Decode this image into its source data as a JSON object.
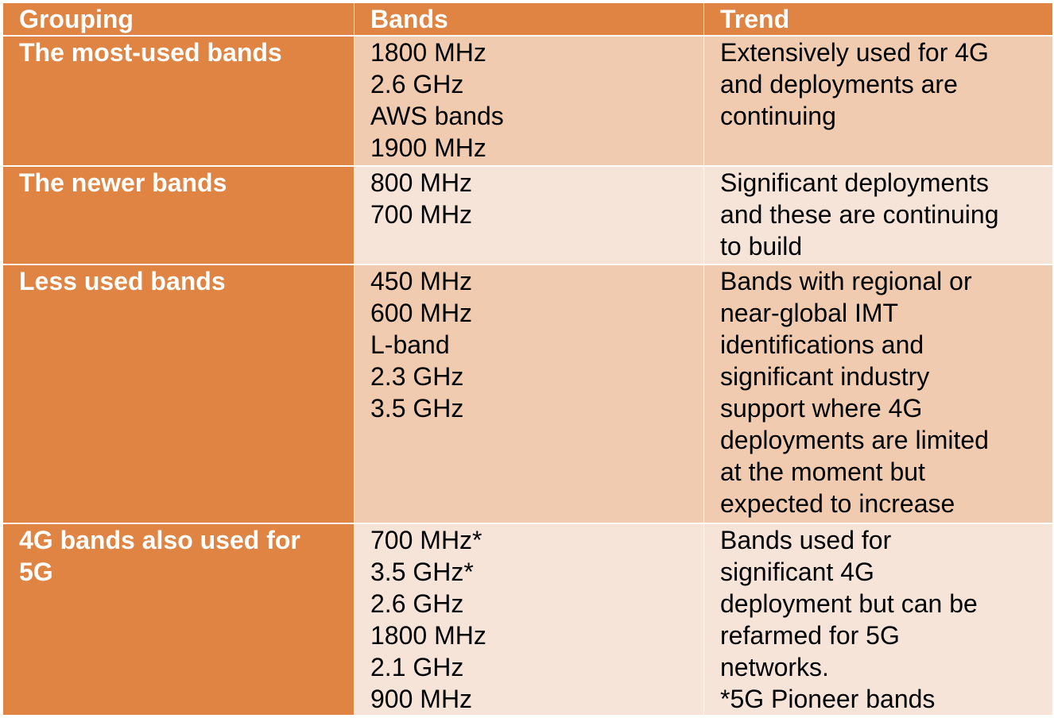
{
  "table": {
    "header": [
      "Grouping",
      "Bands",
      "Trend"
    ],
    "rows": [
      {
        "grouping": "The most-used bands",
        "bands": [
          "1800 MHz",
          "2.6 GHz",
          "AWS bands",
          "1900 MHz"
        ],
        "trend": [
          "Extensively used for 4G",
          "and deployments are",
          "continuing"
        ]
      },
      {
        "grouping": "The newer bands",
        "bands": [
          "800 MHz",
          "700 MHz"
        ],
        "trend": [
          "Significant deployments",
          "and these are continuing",
          "to build"
        ]
      },
      {
        "grouping": "Less used bands",
        "bands": [
          "450 MHz",
          "600 MHz",
          "L-band",
          "2.3 GHz",
          "3.5 GHz"
        ],
        "trend": [
          "Bands with regional or",
          "near-global IMT",
          "identifications and",
          "significant industry",
          "support where 4G",
          "deployments are limited",
          "at the moment but",
          "expected to increase"
        ]
      },
      {
        "grouping": "4G bands also used for 5G",
        "bands": [
          "700 MHz*",
          "3.5 GHz*",
          "2.6 GHz",
          "1800 MHz",
          "2.1 GHz",
          "900 MHz"
        ],
        "trend": [
          "Bands used for",
          "significant 4G",
          "deployment but can be",
          "refarmed for 5G",
          "networks.",
          "*5G Pioneer bands"
        ]
      }
    ]
  }
}
